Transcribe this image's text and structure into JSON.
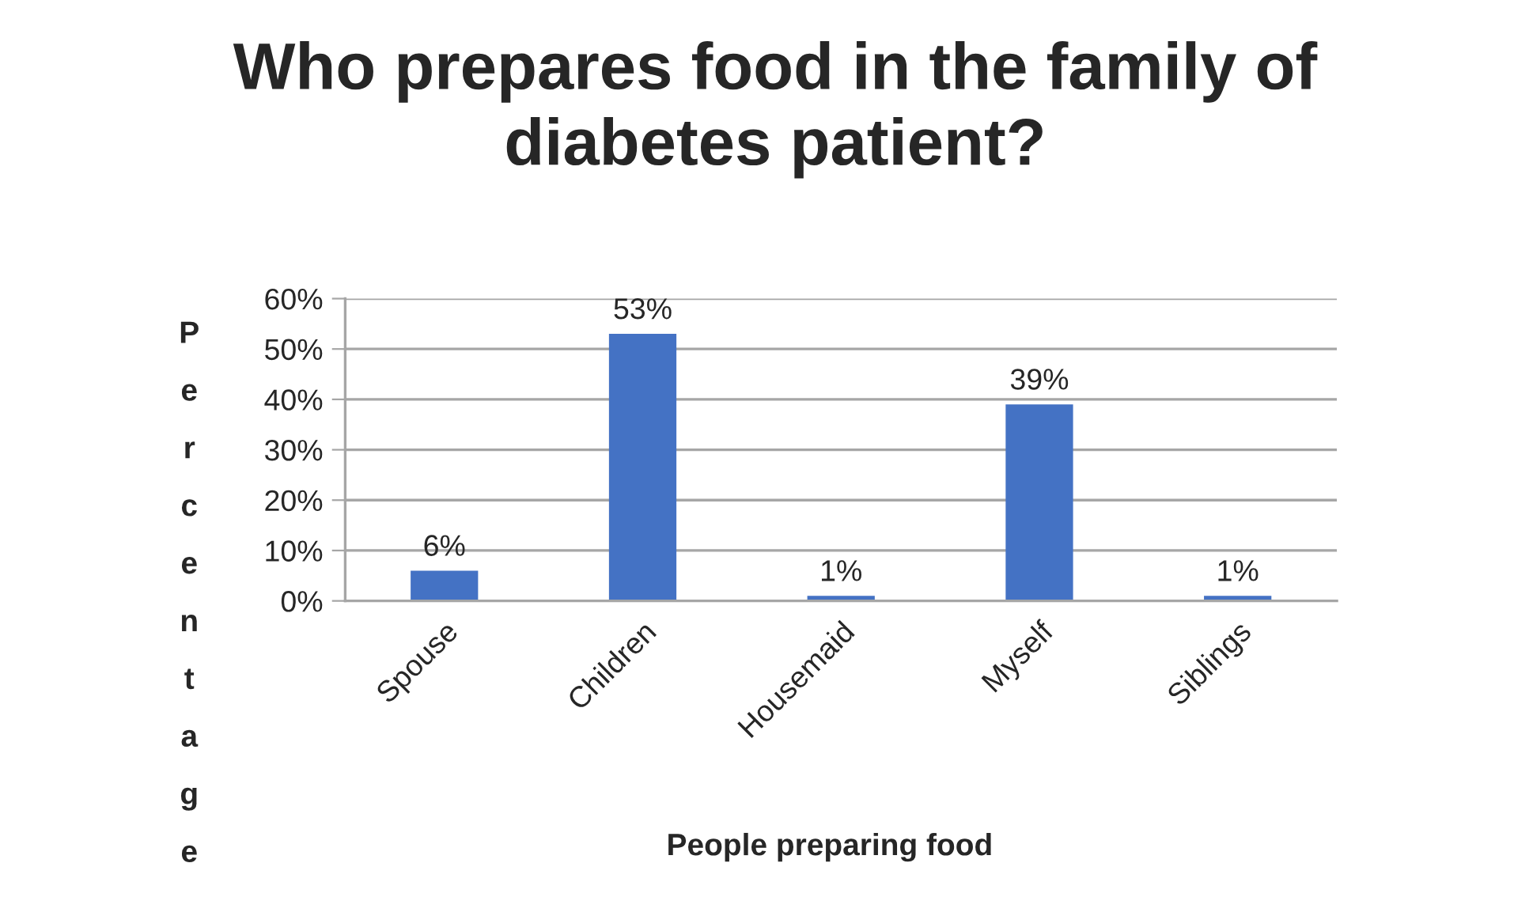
{
  "chart_data": {
    "type": "bar",
    "title": "Who prepares food in the family of diabetes patient?",
    "xlabel": "People preparing food",
    "ylabel": "Percentage",
    "categories": [
      "Spouse",
      "Children",
      "Housemaid",
      "Myself",
      "Siblings"
    ],
    "values": [
      6,
      53,
      1,
      39,
      1
    ],
    "value_labels": [
      "6%",
      "53%",
      "1%",
      "39%",
      "1%"
    ],
    "color": "#4472c4",
    "ylim": [
      0,
      60
    ],
    "yticks": [
      {
        "value": 0,
        "label": "0%"
      },
      {
        "value": 10,
        "label": "10%"
      },
      {
        "value": 20,
        "label": "20%"
      },
      {
        "value": 30,
        "label": "30%"
      },
      {
        "value": 40,
        "label": "40%"
      },
      {
        "value": 50,
        "label": "50%"
      },
      {
        "value": 60,
        "label": "60%"
      }
    ],
    "grid": "y",
    "legend": false
  }
}
